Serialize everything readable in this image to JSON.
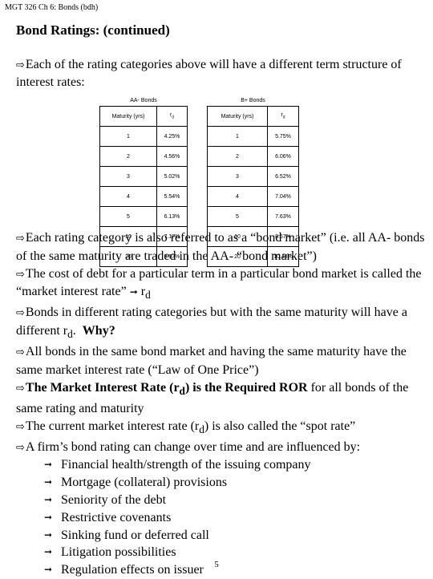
{
  "header": "MGT 326 Ch 6: Bonds (bdh)",
  "title": "Bond Ratings: (continued)",
  "intro": "Each of the rating categories above will have a different term structure of interest rates:",
  "tables": [
    {
      "caption": "AA- Bonds",
      "col1": "Maturity (yrs)",
      "col2": "r",
      "col2_sub": "d",
      "rows": [
        [
          "1",
          "4.25%"
        ],
        [
          "2",
          "4.56%"
        ],
        [
          "3",
          "5.02%"
        ],
        [
          "4",
          "5.54%"
        ],
        [
          "5",
          "6.13%"
        ],
        [
          "10",
          "7.17%"
        ],
        [
          "20",
          "8.93%"
        ]
      ]
    },
    {
      "caption": "B+ Bonds",
      "col1": "Maturity (yrs)",
      "col2": "r",
      "col2_sub": "d",
      "rows": [
        [
          "1",
          "5.75%"
        ],
        [
          "2",
          "6.06%"
        ],
        [
          "3",
          "6.52%"
        ],
        [
          "4",
          "7.04%"
        ],
        [
          "5",
          "7.63%"
        ],
        [
          "10",
          "8.67%"
        ],
        [
          "20",
          "10.43%"
        ]
      ]
    }
  ],
  "body": {
    "p1": "Each rating category is also referred to as a “bond market” (i.e. all AA- bonds of the same maturity are traded in the AA- “bond market”)",
    "p2_a": "The cost of debt for a particular term in a particular bond market is called the “market interest rate”",
    "p2_r": "r",
    "p2_sub": "d",
    "p3_a": "Bonds in different rating categories but with the same maturity will have a different r",
    "p3_sub": "d",
    "p3_b": ".",
    "p3_bold": "Why?",
    "p4": "All bonds in the same bond market and having the same maturity have the same market interest rate (“Law of One Price”)",
    "p5_bold_a": "The Market Interest Rate (r",
    "p5_bold_sub": "d",
    "p5_bold_b": ") is the Required ROR",
    "p5_rest": " for all bonds of the same rating and maturity",
    "p6_a": "The current market interest rate (r",
    "p6_sub": "d",
    "p6_b": ") is also called the “spot rate”",
    "p7": "A firm’s bond rating can change over time and are influenced by:",
    "factors": [
      "Financial health/strength of the issuing company",
      "Mortgage (collateral) provisions",
      "Seniority of the debt",
      "Restrictive covenants",
      "Sinking fund or deferred call",
      "Litigation possibilities",
      "Regulation effects on issuer"
    ]
  },
  "page_number": "5"
}
